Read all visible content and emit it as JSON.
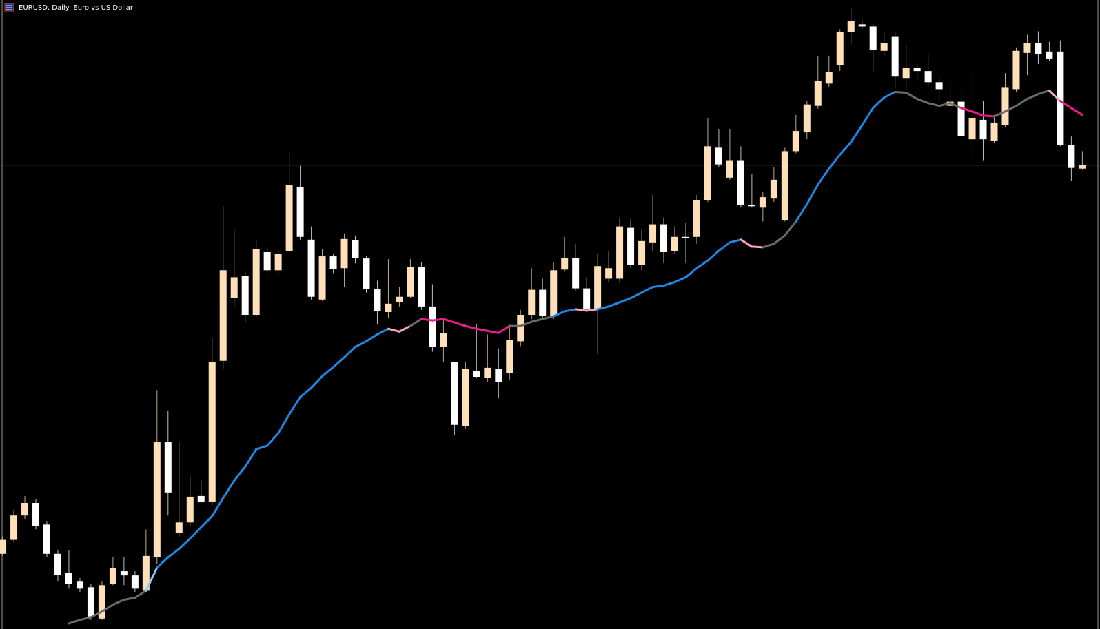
{
  "chart_data": {
    "type": "candlestick",
    "title": "EURUSD, Daily:  Euro vs US Dollar",
    "ylim": [
      -3,
      900
    ],
    "up_color": "#ffdfb8",
    "down_color": "#ffffff",
    "price_line": 663,
    "price_line_color": "#7f9bb8",
    "candles": [
      [
        105,
        130,
        102,
        125
      ],
      [
        125,
        168,
        122,
        160
      ],
      [
        160,
        188,
        155,
        178
      ],
      [
        178,
        184,
        140,
        145
      ],
      [
        147,
        152,
        100,
        105
      ],
      [
        105,
        110,
        65,
        75
      ],
      [
        78,
        110,
        55,
        62
      ],
      [
        65,
        70,
        50,
        55
      ],
      [
        57,
        62,
        10,
        15
      ],
      [
        12,
        65,
        10,
        60
      ],
      [
        62,
        100,
        60,
        85
      ],
      [
        80,
        100,
        60,
        74
      ],
      [
        74,
        80,
        50,
        55
      ],
      [
        52,
        140,
        50,
        102
      ],
      [
        100,
        340,
        90,
        265
      ],
      [
        265,
        310,
        160,
        193
      ],
      [
        135,
        265,
        130,
        150
      ],
      [
        150,
        215,
        145,
        187
      ],
      [
        188,
        210,
        178,
        180
      ],
      [
        180,
        415,
        175,
        380
      ],
      [
        382,
        604,
        370,
        512
      ],
      [
        472,
        570,
        460,
        502
      ],
      [
        504,
        510,
        438,
        448
      ],
      [
        448,
        555,
        445,
        542
      ],
      [
        538,
        545,
        508,
        512
      ],
      [
        512,
        540,
        505,
        536
      ],
      [
        540,
        683,
        538,
        634
      ],
      [
        632,
        662,
        555,
        560
      ],
      [
        556,
        575,
        470,
        474
      ],
      [
        470,
        542,
        468,
        532
      ],
      [
        532,
        535,
        508,
        514
      ],
      [
        515,
        565,
        488,
        557
      ],
      [
        555,
        562,
        522,
        530
      ],
      [
        529,
        532,
        480,
        485
      ],
      [
        485,
        497,
        435,
        453
      ],
      [
        452,
        528,
        444,
        464
      ],
      [
        466,
        488,
        460,
        474
      ],
      [
        474,
        528,
        472,
        517
      ],
      [
        517,
        524,
        455,
        460
      ],
      [
        460,
        492,
        395,
        402
      ],
      [
        402,
        440,
        380,
        422
      ],
      [
        380,
        380,
        275,
        290
      ],
      [
        288,
        380,
        285,
        370
      ],
      [
        367,
        435,
        357,
        359
      ],
      [
        358,
        420,
        352,
        372
      ],
      [
        370,
        400,
        328,
        352
      ],
      [
        364,
        434,
        355,
        412
      ],
      [
        410,
        455,
        403,
        448
      ],
      [
        448,
        515,
        442,
        484
      ],
      [
        484,
        500,
        440,
        446
      ],
      [
        446,
        524,
        442,
        512
      ],
      [
        513,
        560,
        510,
        530
      ],
      [
        530,
        550,
        482,
        486
      ],
      [
        486,
        502,
        452,
        456
      ],
      [
        456,
        535,
        392,
        518
      ],
      [
        500,
        540,
        495,
        515
      ],
      [
        500,
        588,
        495,
        575
      ],
      [
        573,
        585,
        515,
        520
      ],
      [
        520,
        570,
        512,
        554
      ],
      [
        552,
        620,
        540,
        578
      ],
      [
        578,
        588,
        522,
        538
      ],
      [
        540,
        575,
        535,
        560
      ],
      [
        560,
        580,
        522,
        559
      ],
      [
        560,
        620,
        550,
        613
      ],
      [
        613,
        730,
        610,
        690
      ],
      [
        688,
        715,
        660,
        664
      ],
      [
        645,
        715,
        642,
        670
      ],
      [
        670,
        690,
        602,
        606
      ],
      [
        606,
        650,
        602,
        604
      ],
      [
        602,
        625,
        582,
        617
      ],
      [
        615,
        660,
        610,
        642
      ],
      [
        584,
        688,
        582,
        683
      ],
      [
        683,
        735,
        680,
        712
      ],
      [
        710,
        755,
        700,
        750
      ],
      [
        748,
        820,
        744,
        784
      ],
      [
        780,
        820,
        775,
        797
      ],
      [
        807,
        858,
        798,
        854
      ],
      [
        854,
        888,
        835,
        870
      ],
      [
        865,
        872,
        858,
        862
      ],
      [
        862,
        865,
        798,
        828
      ],
      [
        827,
        855,
        820,
        838
      ],
      [
        848,
        855,
        774,
        790
      ],
      [
        788,
        835,
        772,
        803
      ],
      [
        803,
        808,
        788,
        798
      ],
      [
        798,
        823,
        775,
        782
      ],
      [
        782,
        790,
        755,
        772
      ],
      [
        748,
        780,
        735,
        754
      ],
      [
        754,
        778,
        700,
        705
      ],
      [
        700,
        802,
        673,
        730
      ],
      [
        728,
        755,
        670,
        700
      ],
      [
        698,
        735,
        695,
        724
      ],
      [
        720,
        795,
        718,
        774
      ],
      [
        772,
        832,
        768,
        827
      ],
      [
        824,
        850,
        792,
        838
      ],
      [
        838,
        855,
        808,
        822
      ],
      [
        826,
        840,
        812,
        816
      ],
      [
        826,
        842,
        690,
        692
      ],
      [
        692,
        704,
        640,
        659
      ],
      [
        658,
        683,
        656,
        663
      ]
    ],
    "ma": [
      null,
      null,
      null,
      null,
      null,
      null,
      5,
      10,
      14,
      22,
      32,
      39,
      42,
      52,
      85,
      100,
      112,
      127,
      143,
      159,
      185,
      210,
      230,
      255,
      260,
      278,
      305,
      330,
      343,
      360,
      373,
      387,
      402,
      410,
      420,
      428,
      424,
      432,
      442,
      440,
      442,
      437,
      432,
      428,
      425,
      422,
      432,
      432,
      438,
      442,
      446,
      453,
      456,
      454,
      456,
      460,
      466,
      472,
      480,
      488,
      490,
      495,
      502,
      515,
      526,
      540,
      552,
      556,
      546,
      545,
      550,
      562,
      582,
      607,
      635,
      658,
      678,
      696,
      720,
      745,
      760,
      768,
      767,
      758,
      752,
      748,
      752,
      745,
      740,
      734,
      733,
      740,
      748,
      758,
      765,
      770,
      755,
      745,
      735
    ],
    "ma_colors": [
      null,
      null,
      null,
      null,
      null,
      null,
      null,
      "#6b6b6b",
      "#6b6b6b",
      "#6b6b6b",
      "#6b6b6b",
      "#6b6b6b",
      "#6b6b6b",
      "#6b6b6b",
      "#90caf9",
      "#1e88e5",
      "#1e88e5",
      "#1e88e5",
      "#1e88e5",
      "#1e88e5",
      "#1e88e5",
      "#1e88e5",
      "#1e88e5",
      "#1e88e5",
      "#1e88e5",
      "#1e88e5",
      "#1e88e5",
      "#1e88e5",
      "#1e88e5",
      "#1e88e5",
      "#1e88e5",
      "#1e88e5",
      "#1e88e5",
      "#1e88e5",
      "#1e88e5",
      "#1e88e5",
      "#f4a6c0",
      "#f4a6c0",
      "#6b6b6b",
      "#e91e8c",
      "#e91e8c",
      "#e91e8c",
      "#e91e8c",
      "#e91e8c",
      "#e91e8c",
      "#e91e8c",
      "#e91e8c",
      "#6b6b6b",
      "#6b6b6b",
      "#6b6b6b",
      "#6b6b6b",
      "#1e88e5",
      "#1e88e5",
      "#f4a6c0",
      "#f4a6c0",
      "#1e88e5",
      "#1e88e5",
      "#1e88e5",
      "#1e88e5",
      "#1e88e5",
      "#1e88e5",
      "#1e88e5",
      "#1e88e5",
      "#1e88e5",
      "#1e88e5",
      "#1e88e5",
      "#1e88e5",
      "#1e88e5",
      "#f4a6c0",
      "#f4a6c0",
      "#6b6b6b",
      "#6b6b6b",
      "#6b6b6b",
      "#1e88e5",
      "#1e88e5",
      "#1e88e5",
      "#1e88e5",
      "#1e88e5",
      "#1e88e5",
      "#1e88e5",
      "#1e88e5",
      "#1e88e5",
      "#6b6b6b",
      "#6b6b6b",
      "#6b6b6b",
      "#6b6b6b",
      "#6b6b6b",
      "#6b6b6b",
      "#e91e8c",
      "#e91e8c",
      "#e91e8c",
      "#6b6b6b",
      "#6b6b6b",
      "#6b6b6b",
      "#6b6b6b",
      "#6b6b6b",
      "#f4a6c0",
      "#e91e8c",
      "#e91e8c"
    ]
  }
}
